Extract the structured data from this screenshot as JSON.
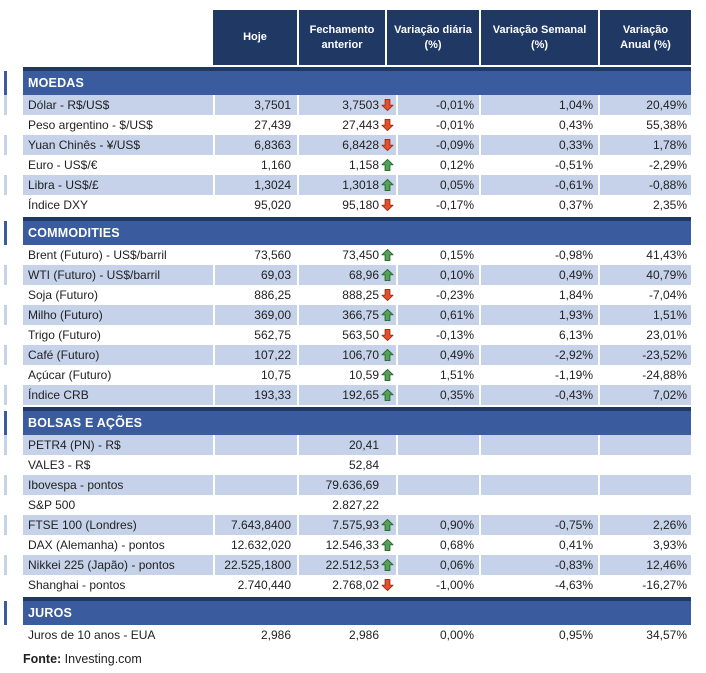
{
  "chart_data": {
    "type": "table",
    "header": [
      {
        "l1": "Hoje",
        "l2": ""
      },
      {
        "l1": "Fechamento",
        "l2": "anterior"
      },
      {
        "l1": "Variação diária",
        "l2": "(%)"
      },
      {
        "l1": "Variação Semanal",
        "l2": "(%)"
      },
      {
        "l1": "Variação",
        "l2": "Anual (%)"
      }
    ],
    "sections": [
      {
        "title": "MOEDAS",
        "stripe_start": "blue",
        "rows": [
          {
            "label": "Dólar - R$/US$",
            "hoje": "3,7501",
            "fechamento": "3,7503",
            "arrow": "down",
            "var_diaria": "-0,01%",
            "var_semanal": "1,04%",
            "var_anual": "20,49%"
          },
          {
            "label": "Peso argentino - $/US$",
            "hoje": "27,439",
            "fechamento": "27,443",
            "arrow": "down",
            "var_diaria": "-0,01%",
            "var_semanal": "0,43%",
            "var_anual": "55,38%"
          },
          {
            "label": "Yuan Chinês - ¥/US$",
            "hoje": "6,8363",
            "fechamento": "6,8428",
            "arrow": "down",
            "var_diaria": "-0,09%",
            "var_semanal": "0,33%",
            "var_anual": "1,78%"
          },
          {
            "label": "Euro - US$/€",
            "hoje": "1,160",
            "fechamento": "1,158",
            "arrow": "up",
            "var_diaria": "0,12%",
            "var_semanal": "-0,51%",
            "var_anual": "-2,29%"
          },
          {
            "label": "Libra - US$/£",
            "hoje": "1,3024",
            "fechamento": "1,3018",
            "arrow": "up",
            "var_diaria": "0,05%",
            "var_semanal": "-0,61%",
            "var_anual": "-0,88%"
          },
          {
            "label": "Índice DXY",
            "hoje": "95,020",
            "fechamento": "95,180",
            "arrow": "down",
            "var_diaria": "-0,17%",
            "var_semanal": "0,37%",
            "var_anual": "2,35%"
          }
        ]
      },
      {
        "title": "COMMODITIES",
        "stripe_start": "white",
        "rows": [
          {
            "label": "Brent (Futuro) - US$/barril",
            "hoje": "73,560",
            "fechamento": "73,450",
            "arrow": "up",
            "var_diaria": "0,15%",
            "var_semanal": "-0,98%",
            "var_anual": "41,43%"
          },
          {
            "label": "WTI (Futuro) - US$/barril",
            "hoje": "69,03",
            "fechamento": "68,96",
            "arrow": "up",
            "var_diaria": "0,10%",
            "var_semanal": "0,49%",
            "var_anual": "40,79%"
          },
          {
            "label": "Soja (Futuro)",
            "hoje": "886,25",
            "fechamento": "888,25",
            "arrow": "down",
            "var_diaria": "-0,23%",
            "var_semanal": "1,84%",
            "var_anual": "-7,04%"
          },
          {
            "label": "Milho (Futuro)",
            "hoje": "369,00",
            "fechamento": "366,75",
            "arrow": "up",
            "var_diaria": "0,61%",
            "var_semanal": "1,93%",
            "var_anual": "1,51%"
          },
          {
            "label": "Trigo (Futuro)",
            "hoje": "562,75",
            "fechamento": "563,50",
            "arrow": "down",
            "var_diaria": "-0,13%",
            "var_semanal": "6,13%",
            "var_anual": "23,01%"
          },
          {
            "label": "Café (Futuro)",
            "hoje": "107,22",
            "fechamento": "106,70",
            "arrow": "up",
            "var_diaria": "0,49%",
            "var_semanal": "-2,92%",
            "var_anual": "-23,52%"
          },
          {
            "label": "Açúcar (Futuro)",
            "hoje": "10,75",
            "fechamento": "10,59",
            "arrow": "up",
            "var_diaria": "1,51%",
            "var_semanal": "-1,19%",
            "var_anual": "-24,88%"
          },
          {
            "label": "Índice CRB",
            "hoje": "193,33",
            "fechamento": "192,65",
            "arrow": "up",
            "var_diaria": "0,35%",
            "var_semanal": "-0,43%",
            "var_anual": "7,02%"
          }
        ]
      },
      {
        "title": "BOLSAS E AÇÕES",
        "stripe_start": "blue",
        "rows": [
          {
            "label": "PETR4 (PN) - R$",
            "hoje": "",
            "fechamento": "20,41",
            "arrow": "",
            "var_diaria": "",
            "var_semanal": "",
            "var_anual": ""
          },
          {
            "label": "VALE3 - R$",
            "hoje": "",
            "fechamento": "52,84",
            "arrow": "",
            "var_diaria": "",
            "var_semanal": "",
            "var_anual": ""
          },
          {
            "label": "Ibovespa - pontos",
            "hoje": "",
            "fechamento": "79.636,69",
            "arrow": "",
            "var_diaria": "",
            "var_semanal": "",
            "var_anual": ""
          },
          {
            "label": "S&P 500",
            "hoje": "",
            "fechamento": "2.827,22",
            "arrow": "",
            "var_diaria": "",
            "var_semanal": "",
            "var_anual": ""
          },
          {
            "label": "FTSE 100 (Londres)",
            "hoje": "7.643,8400",
            "fechamento": "7.575,93",
            "arrow": "up",
            "var_diaria": "0,90%",
            "var_semanal": "-0,75%",
            "var_anual": "2,26%"
          },
          {
            "label": "DAX (Alemanha) - pontos",
            "hoje": "12.632,020",
            "fechamento": "12.546,33",
            "arrow": "up",
            "var_diaria": "0,68%",
            "var_semanal": "0,41%",
            "var_anual": "3,93%"
          },
          {
            "label": "Nikkei 225 (Japão) - pontos",
            "hoje": "22.525,1800",
            "fechamento": "22.512,53",
            "arrow": "up",
            "var_diaria": "0,06%",
            "var_semanal": "-0,83%",
            "var_anual": "12,46%"
          },
          {
            "label": "Shanghai - pontos",
            "hoje": "2.740,440",
            "fechamento": "2.768,02",
            "arrow": "down",
            "var_diaria": "-1,00%",
            "var_semanal": "-4,63%",
            "var_anual": "-16,27%"
          }
        ]
      },
      {
        "title": "JUROS",
        "stripe_start": "white",
        "rows": [
          {
            "label": "Juros de 10 anos - EUA",
            "hoje": "2,986",
            "fechamento": "2,986",
            "arrow": "",
            "var_diaria": "0,00%",
            "var_semanal": "0,95%",
            "var_anual": "34,57%"
          }
        ]
      }
    ],
    "source": {
      "label": "Fonte:",
      "value": "Investing.com"
    }
  },
  "colors": {
    "header_navy": "#1F3864",
    "section_band_blue": "#3A5C9E",
    "row_stripe_blue": "#C5D2EA",
    "arrow_up_green": "#55A05A",
    "arrow_up_stroke": "#27682C",
    "arrow_down_red": "#E2502F",
    "arrow_down_stroke": "#9C2F12"
  }
}
